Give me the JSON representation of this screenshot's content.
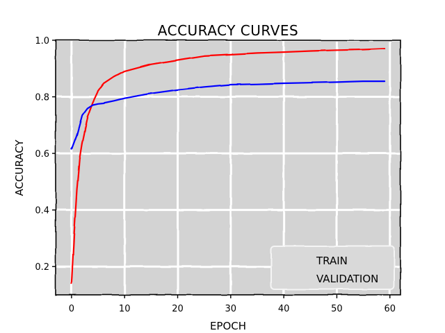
{
  "chart_data": {
    "type": "line",
    "title": "Accuracy Curves",
    "xlabel": "Epoch",
    "ylabel": "Accuracy",
    "xlim": [
      -3,
      62
    ],
    "ylim": [
      0.1,
      1.0
    ],
    "xticks": [
      0,
      10,
      20,
      30,
      40,
      50,
      60
    ],
    "yticks": [
      0.2,
      0.4,
      0.6,
      0.8,
      1.0
    ],
    "xtick_labels": [
      "0",
      "10",
      "20",
      "30",
      "40",
      "50",
      "60"
    ],
    "ytick_labels": [
      "0.2",
      "0.4",
      "0.6",
      "0.8",
      "1.0"
    ],
    "grid": true,
    "legend_position": "lower-right",
    "series": [
      {
        "name": "Train",
        "color": "#ff0000",
        "x": [
          0,
          0.5,
          1,
          1.5,
          2,
          3,
          4,
          5,
          6,
          8,
          10,
          12,
          15,
          20,
          25,
          30,
          35,
          40,
          45,
          50,
          55,
          59
        ],
        "y": [
          0.14,
          0.32,
          0.47,
          0.58,
          0.64,
          0.73,
          0.78,
          0.82,
          0.845,
          0.87,
          0.89,
          0.9,
          0.915,
          0.93,
          0.945,
          0.95,
          0.955,
          0.958,
          0.962,
          0.965,
          0.967,
          0.97
        ]
      },
      {
        "name": "Validation",
        "color": "#0000ff",
        "x": [
          0,
          1,
          2,
          3,
          4,
          5,
          6,
          8,
          10,
          12,
          15,
          20,
          25,
          30,
          35,
          40,
          45,
          50,
          55,
          59
        ],
        "y": [
          0.615,
          0.665,
          0.735,
          0.76,
          0.772,
          0.776,
          0.778,
          0.786,
          0.795,
          0.802,
          0.812,
          0.825,
          0.835,
          0.843,
          0.845,
          0.848,
          0.85,
          0.852,
          0.855,
          0.855
        ]
      }
    ]
  }
}
